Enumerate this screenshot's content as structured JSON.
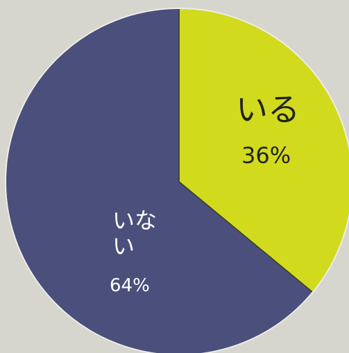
{
  "chart_data": {
    "type": "pie",
    "categories": [
      "いる",
      "いない"
    ],
    "values": [
      36,
      64
    ],
    "value_labels": [
      "36%",
      "64%"
    ],
    "colors": [
      "#d2da1e",
      "#4b4f7b"
    ]
  }
}
